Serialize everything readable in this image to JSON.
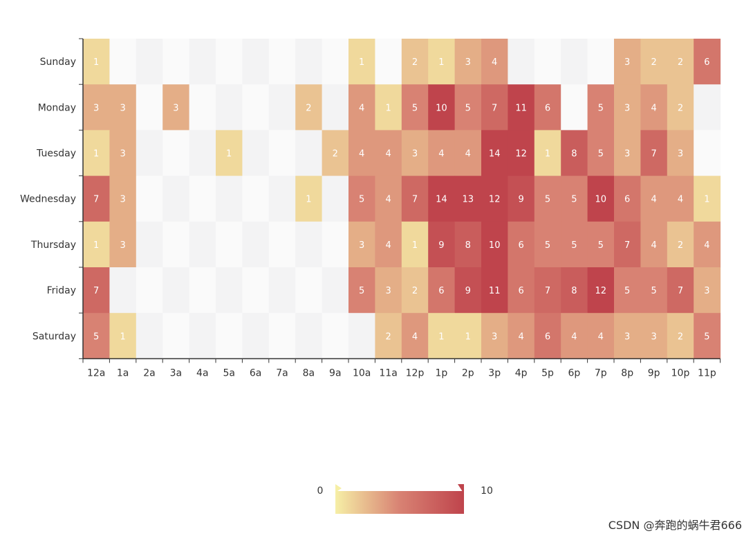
{
  "chart_data": {
    "type": "heatmap",
    "x_categories": [
      "12a",
      "1a",
      "2a",
      "3a",
      "4a",
      "5a",
      "6a",
      "7a",
      "8a",
      "9a",
      "10a",
      "11a",
      "12p",
      "1p",
      "2p",
      "3p",
      "4p",
      "5p",
      "6p",
      "7p",
      "8p",
      "9p",
      "10p",
      "11p"
    ],
    "y_categories": [
      "Saturday",
      "Friday",
      "Thursday",
      "Wednesday",
      "Tuesday",
      "Monday",
      "Sunday"
    ],
    "rows": {
      "Sunday": [
        1,
        0,
        0,
        0,
        0,
        0,
        0,
        0,
        0,
        0,
        1,
        0,
        2,
        1,
        3,
        4,
        0,
        0,
        0,
        0,
        3,
        2,
        2,
        6
      ],
      "Monday": [
        3,
        3,
        0,
        3,
        0,
        0,
        0,
        0,
        2,
        0,
        4,
        1,
        5,
        10,
        5,
        7,
        11,
        6,
        0,
        5,
        3,
        4,
        2,
        0
      ],
      "Tuesday": [
        1,
        3,
        0,
        0,
        0,
        1,
        0,
        0,
        0,
        2,
        4,
        4,
        3,
        4,
        4,
        14,
        12,
        1,
        8,
        5,
        3,
        7,
        3,
        0
      ],
      "Wednesday": [
        7,
        3,
        0,
        0,
        0,
        0,
        0,
        0,
        1,
        0,
        5,
        4,
        7,
        14,
        13,
        12,
        9,
        5,
        5,
        10,
        6,
        4,
        4,
        1
      ],
      "Thursday": [
        1,
        3,
        0,
        0,
        0,
        0,
        0,
        0,
        0,
        0,
        3,
        4,
        1,
        9,
        8,
        10,
        6,
        5,
        5,
        5,
        7,
        4,
        2,
        4
      ],
      "Friday": [
        7,
        0,
        0,
        0,
        0,
        0,
        0,
        0,
        0,
        0,
        5,
        3,
        2,
        6,
        9,
        11,
        6,
        7,
        8,
        12,
        5,
        5,
        7,
        3
      ],
      "Saturday": [
        5,
        1,
        0,
        0,
        0,
        0,
        0,
        0,
        0,
        0,
        0,
        2,
        4,
        1,
        1,
        3,
        4,
        6,
        4,
        4,
        3,
        3,
        2,
        5
      ]
    },
    "visual_map": {
      "min": 0,
      "max": 10,
      "min_label": "0",
      "max_label": "10",
      "colors": [
        "#f6efa6",
        "#d88273",
        "#bf444c"
      ]
    }
  },
  "watermark": "CSDN @奔跑的蜗牛君666"
}
